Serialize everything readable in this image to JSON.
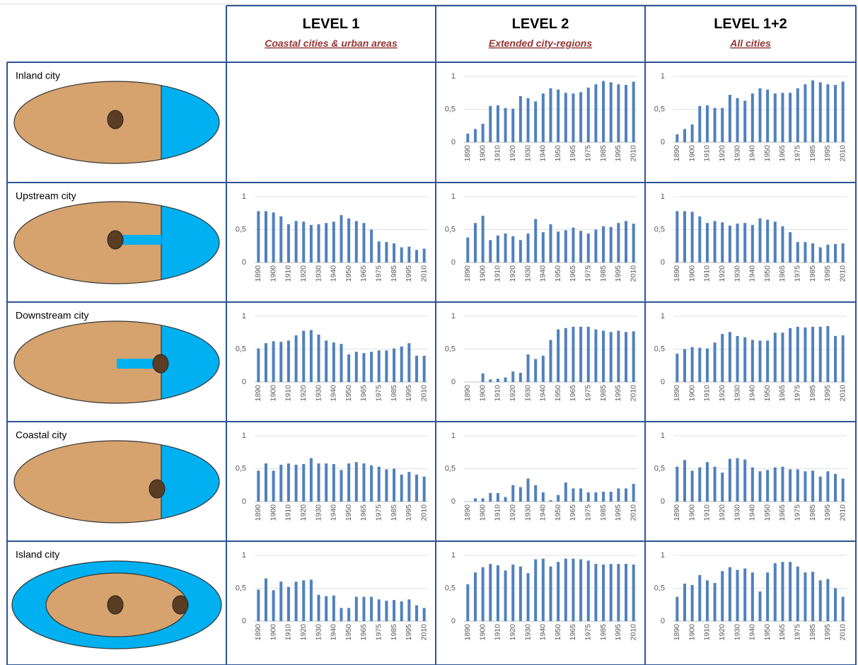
{
  "header": {
    "columns": [
      {
        "title": "LEVEL 1",
        "subtitle": "Coastal cities & urban areas"
      },
      {
        "title": "LEVEL 2",
        "subtitle": "Extended city-regions"
      },
      {
        "title": "LEVEL 1+2",
        "subtitle": "All cities"
      }
    ]
  },
  "categories": [
    "1890",
    null,
    "1900",
    null,
    "1910",
    null,
    "1920",
    null,
    "1930",
    null,
    "1940",
    null,
    "1950",
    null,
    "1965",
    null,
    "1975",
    null,
    "1985",
    null,
    "1995",
    null,
    "2010"
  ],
  "ylim": [
    0,
    1
  ],
  "yticks": [
    0,
    {
      "value": 0.5,
      "label": "0,5"
    },
    1
  ],
  "color": "#4f81bd",
  "rows": [
    {
      "label": "Inland city",
      "charts": [
        null,
        {
          "type": "bar",
          "values": [
            0.13,
            0.2,
            0.28,
            0.55,
            0.56,
            0.52,
            0.51,
            0.7,
            0.67,
            0.62,
            0.74,
            0.82,
            0.8,
            0.75,
            0.74,
            0.76,
            0.83,
            0.88,
            0.93,
            0.91,
            0.88,
            0.87,
            0.92
          ]
        },
        {
          "type": "bar",
          "values": [
            0.12,
            0.2,
            0.27,
            0.55,
            0.56,
            0.52,
            0.52,
            0.72,
            0.67,
            0.63,
            0.74,
            0.82,
            0.8,
            0.74,
            0.75,
            0.75,
            0.82,
            0.88,
            0.94,
            0.91,
            0.88,
            0.87,
            0.92
          ]
        }
      ]
    },
    {
      "label": "Upstream city",
      "charts": [
        {
          "type": "bar",
          "values": [
            0.78,
            0.78,
            0.76,
            0.7,
            0.58,
            0.63,
            0.62,
            0.57,
            0.58,
            0.6,
            0.62,
            0.72,
            0.67,
            0.63,
            0.6,
            0.5,
            0.32,
            0.31,
            0.29,
            0.23,
            0.24,
            0.19,
            0.21
          ]
        },
        {
          "type": "bar",
          "values": [
            0.38,
            0.6,
            0.71,
            0.34,
            0.41,
            0.44,
            0.4,
            0.34,
            0.44,
            0.66,
            0.46,
            0.58,
            0.47,
            0.49,
            0.53,
            0.48,
            0.44,
            0.5,
            0.55,
            0.54,
            0.6,
            0.63,
            0.59
          ]
        },
        {
          "type": "bar",
          "values": [
            0.78,
            0.78,
            0.77,
            0.7,
            0.6,
            0.63,
            0.61,
            0.56,
            0.59,
            0.6,
            0.57,
            0.67,
            0.65,
            0.62,
            0.55,
            0.46,
            0.31,
            0.31,
            0.29,
            0.23,
            0.27,
            0.28,
            0.29
          ]
        }
      ]
    },
    {
      "label": "Downstream city",
      "charts": [
        {
          "type": "bar",
          "values": [
            0.51,
            0.59,
            0.62,
            0.61,
            0.63,
            0.71,
            0.78,
            0.79,
            0.72,
            0.63,
            0.6,
            0.58,
            0.42,
            0.46,
            0.44,
            0.46,
            0.48,
            0.48,
            0.51,
            0.54,
            0.59,
            0.4,
            0.4
          ]
        },
        {
          "type": "bar",
          "values": [
            0,
            0,
            0.13,
            0.04,
            0.05,
            0.07,
            0.16,
            0.14,
            0.42,
            0.35,
            0.4,
            0.64,
            0.8,
            0.82,
            0.84,
            0.84,
            0.84,
            0.8,
            0.78,
            0.76,
            0.78,
            0.76,
            0.77
          ]
        },
        {
          "type": "bar",
          "values": [
            0.43,
            0.5,
            0.53,
            0.52,
            0.51,
            0.6,
            0.73,
            0.76,
            0.7,
            0.68,
            0.64,
            0.63,
            0.63,
            0.75,
            0.75,
            0.82,
            0.84,
            0.83,
            0.84,
            0.84,
            0.85,
            0.7,
            0.71
          ]
        }
      ]
    },
    {
      "label": "Coastal city",
      "charts": [
        {
          "type": "bar",
          "values": [
            0.47,
            0.58,
            0.47,
            0.56,
            0.58,
            0.56,
            0.57,
            0.66,
            0.58,
            0.58,
            0.57,
            0.48,
            0.58,
            0.6,
            0.58,
            0.55,
            0.53,
            0.49,
            0.5,
            0.41,
            0.45,
            0.41,
            0.38
          ]
        },
        {
          "type": "bar",
          "values": [
            0,
            0.05,
            0.05,
            0.13,
            0.13,
            0.07,
            0.25,
            0.22,
            0.35,
            0.25,
            0.14,
            0.02,
            0.1,
            0.29,
            0.2,
            0.2,
            0.14,
            0.14,
            0.15,
            0.15,
            0.2,
            0.2,
            0.27
          ]
        },
        {
          "type": "bar",
          "values": [
            0.53,
            0.63,
            0.47,
            0.52,
            0.6,
            0.53,
            0.44,
            0.65,
            0.66,
            0.64,
            0.52,
            0.46,
            0.48,
            0.52,
            0.53,
            0.49,
            0.49,
            0.46,
            0.47,
            0.38,
            0.46,
            0.42,
            0.35
          ]
        }
      ]
    },
    {
      "label": "Island city",
      "charts": [
        {
          "type": "bar",
          "values": [
            0.48,
            0.65,
            0.47,
            0.6,
            0.52,
            0.6,
            0.62,
            0.63,
            0.4,
            0.38,
            0.39,
            0.2,
            0.2,
            0.37,
            0.37,
            0.37,
            0.33,
            0.31,
            0.32,
            0.3,
            0.33,
            0.24,
            0.2
          ]
        },
        {
          "type": "bar",
          "values": [
            0.56,
            0.74,
            0.82,
            0.87,
            0.85,
            0.77,
            0.86,
            0.83,
            0.73,
            0.94,
            0.95,
            0.83,
            0.9,
            0.95,
            0.95,
            0.94,
            0.92,
            0.87,
            0.86,
            0.87,
            0.87,
            0.87,
            0.86
          ]
        },
        {
          "type": "bar",
          "values": [
            0.37,
            0.57,
            0.55,
            0.7,
            0.62,
            0.58,
            0.76,
            0.82,
            0.78,
            0.8,
            0.74,
            0.45,
            0.74,
            0.88,
            0.9,
            0.9,
            0.83,
            0.74,
            0.75,
            0.62,
            0.64,
            0.5,
            0.37
          ]
        }
      ]
    }
  ]
}
